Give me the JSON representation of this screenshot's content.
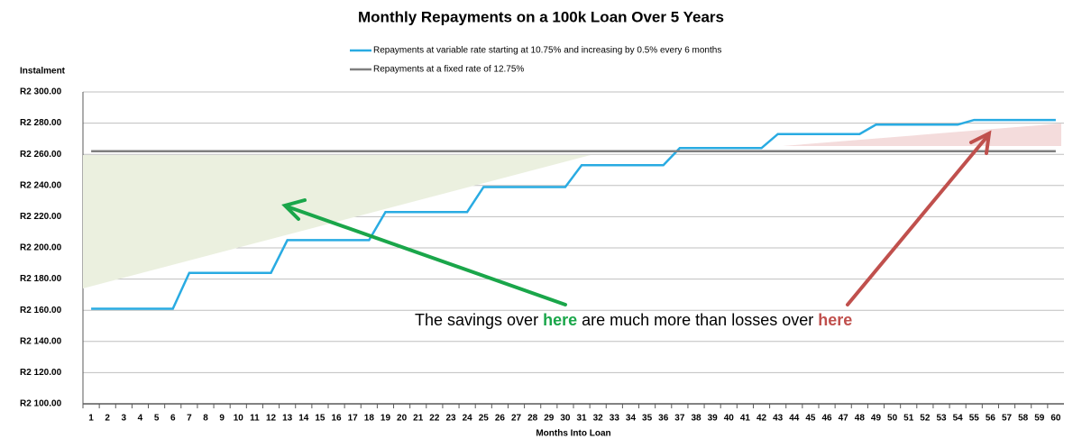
{
  "chart_data": {
    "type": "line",
    "title": "Monthly Repayments on a 100k Loan Over 5 Years",
    "y_label": "Instalment",
    "x_label": "Months Into Loan",
    "categories": [
      1,
      2,
      3,
      4,
      5,
      6,
      7,
      8,
      9,
      10,
      11,
      12,
      13,
      14,
      15,
      16,
      17,
      18,
      19,
      20,
      21,
      22,
      23,
      24,
      25,
      26,
      27,
      28,
      29,
      30,
      31,
      32,
      33,
      34,
      35,
      36,
      37,
      38,
      39,
      40,
      41,
      42,
      43,
      44,
      45,
      46,
      47,
      48,
      49,
      50,
      51,
      52,
      53,
      54,
      55,
      56,
      57,
      58,
      59,
      60
    ],
    "series": [
      {
        "name": "Repayments at variable rate starting at 10.75% and increasing by 0.5% every 6 months",
        "color": "#29abe2",
        "values": [
          2161,
          2161,
          2161,
          2161,
          2161,
          2161,
          2184,
          2184,
          2184,
          2184,
          2184,
          2184,
          2205,
          2205,
          2205,
          2205,
          2205,
          2205,
          2223,
          2223,
          2223,
          2223,
          2223,
          2223,
          2239,
          2239,
          2239,
          2239,
          2239,
          2239,
          2253,
          2253,
          2253,
          2253,
          2253,
          2253,
          2264,
          2264,
          2264,
          2264,
          2264,
          2264,
          2273,
          2273,
          2273,
          2273,
          2273,
          2273,
          2279,
          2279,
          2279,
          2279,
          2279,
          2279,
          2282,
          2282,
          2282,
          2282,
          2282,
          2282
        ]
      },
      {
        "name": "Repayments at a fixed rate of 12.75%",
        "color": "#7f7f7f",
        "values": [
          2262,
          2262,
          2262,
          2262,
          2262,
          2262,
          2262,
          2262,
          2262,
          2262,
          2262,
          2262,
          2262,
          2262,
          2262,
          2262,
          2262,
          2262,
          2262,
          2262,
          2262,
          2262,
          2262,
          2262,
          2262,
          2262,
          2262,
          2262,
          2262,
          2262,
          2262,
          2262,
          2262,
          2262,
          2262,
          2262,
          2262,
          2262,
          2262,
          2262,
          2262,
          2262,
          2262,
          2262,
          2262,
          2262,
          2262,
          2262,
          2262,
          2262,
          2262,
          2262,
          2262,
          2262,
          2262,
          2262,
          2262,
          2262,
          2262,
          2262
        ]
      }
    ],
    "ylim": [
      2100,
      2300
    ],
    "yticks": [
      {
        "value": 2100,
        "label": "R2 100.00"
      },
      {
        "value": 2120,
        "label": "R2 120.00"
      },
      {
        "value": 2140,
        "label": "R2 140.00"
      },
      {
        "value": 2160,
        "label": "R2 160.00"
      },
      {
        "value": 2180,
        "label": "R2 180.00"
      },
      {
        "value": 2200,
        "label": "R2 200.00"
      },
      {
        "value": 2220,
        "label": "R2 220.00"
      },
      {
        "value": 2240,
        "label": "R2 240.00"
      },
      {
        "value": 2260,
        "label": "R2 260.00"
      },
      {
        "value": 2280,
        "label": "R2 280.00"
      },
      {
        "value": 2300,
        "label": "R2 300.00"
      }
    ],
    "grid": true,
    "annotation": [
      {
        "text": "The savings over ",
        "color": "#000000",
        "bold": false
      },
      {
        "text": "here",
        "color": "#1aa64a",
        "bold": true
      },
      {
        "text": " are much more than losses over ",
        "color": "#000000",
        "bold": false
      },
      {
        "text": "here",
        "color": "#c0504d",
        "bold": true
      }
    ]
  }
}
